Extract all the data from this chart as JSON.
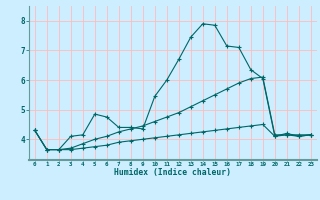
{
  "xlabel": "Humidex (Indice chaleur)",
  "background_color": "#cceeff",
  "grid_color": "#ffbbbb",
  "line_color": "#006666",
  "axis_band_color": "#669999",
  "x_values": [
    0,
    1,
    2,
    3,
    4,
    5,
    6,
    7,
    8,
    9,
    10,
    11,
    12,
    13,
    14,
    15,
    16,
    17,
    18,
    19,
    20,
    21,
    22,
    23
  ],
  "line1": [
    4.3,
    3.65,
    3.65,
    4.1,
    4.15,
    4.85,
    4.75,
    4.4,
    4.4,
    4.35,
    5.45,
    6.0,
    6.7,
    7.45,
    7.9,
    7.85,
    7.15,
    7.1,
    6.35,
    6.05,
    4.1,
    4.2,
    4.1,
    4.15
  ],
  "line2": [
    4.3,
    3.65,
    3.65,
    3.7,
    3.85,
    4.0,
    4.1,
    4.25,
    4.35,
    4.45,
    4.6,
    4.75,
    4.9,
    5.1,
    5.3,
    5.5,
    5.7,
    5.9,
    6.05,
    6.1,
    4.15,
    4.15,
    4.15,
    4.15
  ],
  "line3": [
    4.3,
    3.65,
    3.65,
    3.65,
    3.7,
    3.75,
    3.8,
    3.9,
    3.95,
    4.0,
    4.05,
    4.1,
    4.15,
    4.2,
    4.25,
    4.3,
    4.35,
    4.4,
    4.45,
    4.5,
    4.1,
    4.15,
    4.1,
    4.15
  ],
  "ylim": [
    3.3,
    8.5
  ],
  "yticks": [
    4,
    5,
    6,
    7,
    8
  ],
  "xlim": [
    -0.5,
    23.5
  ],
  "xtick_labels": [
    "0",
    "1",
    "2",
    "3",
    "4",
    "5",
    "6",
    "7",
    "8",
    "9",
    "10",
    "11",
    "12",
    "13",
    "14",
    "15",
    "16",
    "17",
    "18",
    "19",
    "20",
    "21",
    "22",
    "23"
  ]
}
